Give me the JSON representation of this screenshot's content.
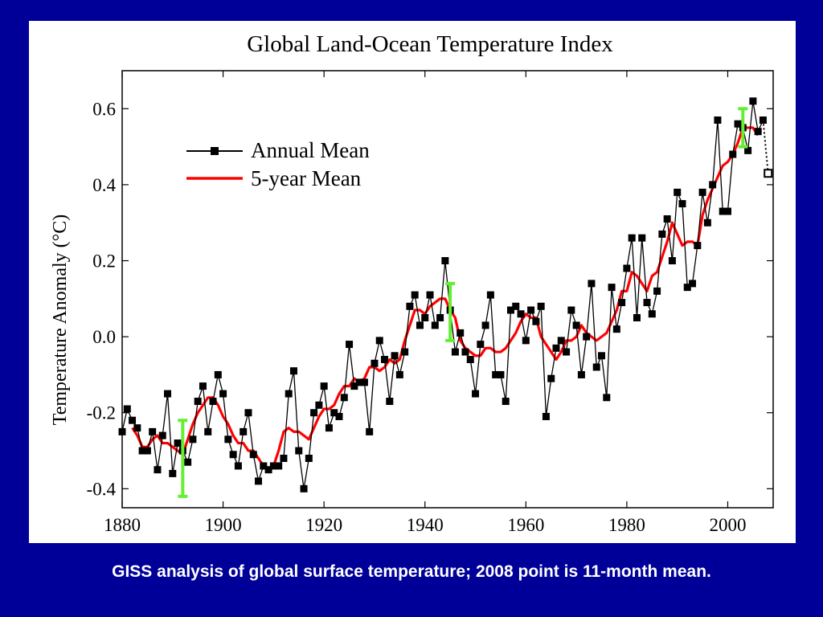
{
  "chart_data": {
    "type": "line",
    "title": "Global Land-Ocean Temperature Index",
    "xlabel": "",
    "ylabel": "Temperature Anomaly (°C)",
    "xlim": [
      1880,
      2009
    ],
    "ylim": [
      -0.45,
      0.7
    ],
    "x_ticks": [
      1880,
      1900,
      1920,
      1940,
      1960,
      1980,
      2000
    ],
    "y_ticks": [
      0.6,
      0.4,
      0.2,
      0.0,
      -0.2,
      -0.4
    ],
    "y_tick_labels": [
      "0.6",
      "0.4",
      "0.2",
      "0.0",
      "-0.2",
      "-0.4"
    ],
    "grid": false,
    "legend_position": "upper-left",
    "series": [
      {
        "name": "Annual Mean",
        "color": "#000000",
        "marker": "square",
        "x": [
          1880,
          1881,
          1882,
          1883,
          1884,
          1885,
          1886,
          1887,
          1888,
          1889,
          1890,
          1891,
          1892,
          1893,
          1894,
          1895,
          1896,
          1897,
          1898,
          1899,
          1900,
          1901,
          1902,
          1903,
          1904,
          1905,
          1906,
          1907,
          1908,
          1909,
          1910,
          1911,
          1912,
          1913,
          1914,
          1915,
          1916,
          1917,
          1918,
          1919,
          1920,
          1921,
          1922,
          1923,
          1924,
          1925,
          1926,
          1927,
          1928,
          1929,
          1930,
          1931,
          1932,
          1933,
          1934,
          1935,
          1936,
          1937,
          1938,
          1939,
          1940,
          1941,
          1942,
          1943,
          1944,
          1945,
          1946,
          1947,
          1948,
          1949,
          1950,
          1951,
          1952,
          1953,
          1954,
          1955,
          1956,
          1957,
          1958,
          1959,
          1960,
          1961,
          1962,
          1963,
          1964,
          1965,
          1966,
          1967,
          1968,
          1969,
          1970,
          1971,
          1972,
          1973,
          1974,
          1975,
          1976,
          1977,
          1978,
          1979,
          1980,
          1981,
          1982,
          1983,
          1984,
          1985,
          1986,
          1987,
          1988,
          1989,
          1990,
          1991,
          1992,
          1993,
          1994,
          1995,
          1996,
          1997,
          1998,
          1999,
          2000,
          2001,
          2002,
          2003,
          2004,
          2005,
          2006,
          2007
        ],
        "y": [
          -0.25,
          -0.19,
          -0.22,
          -0.24,
          -0.3,
          -0.3,
          -0.25,
          -0.35,
          -0.26,
          -0.15,
          -0.36,
          -0.28,
          -0.3,
          -0.33,
          -0.27,
          -0.17,
          -0.13,
          -0.25,
          -0.17,
          -0.1,
          -0.15,
          -0.27,
          -0.31,
          -0.34,
          -0.25,
          -0.2,
          -0.31,
          -0.38,
          -0.34,
          -0.35,
          -0.34,
          -0.34,
          -0.32,
          -0.15,
          -0.09,
          -0.3,
          -0.4,
          -0.32,
          -0.2,
          -0.18,
          -0.13,
          -0.24,
          -0.2,
          -0.21,
          -0.16,
          -0.02,
          -0.13,
          -0.12,
          -0.12,
          -0.25,
          -0.07,
          -0.01,
          -0.06,
          -0.17,
          -0.05,
          -0.1,
          -0.04,
          0.08,
          0.11,
          0.03,
          0.05,
          0.11,
          0.03,
          0.05,
          0.2,
          0.07,
          -0.04,
          0.01,
          -0.04,
          -0.06,
          -0.15,
          -0.02,
          0.03,
          0.11,
          -0.1,
          -0.1,
          -0.17,
          0.07,
          0.08,
          0.06,
          -0.01,
          0.07,
          0.04,
          0.08,
          -0.21,
          -0.11,
          -0.03,
          -0.01,
          -0.04,
          0.07,
          0.03,
          -0.1,
          0.0,
          0.14,
          -0.08,
          -0.05,
          -0.16,
          0.13,
          0.02,
          0.09,
          0.18,
          0.26,
          0.05,
          0.26,
          0.09,
          0.06,
          0.12,
          0.27,
          0.31,
          0.2,
          0.38,
          0.35,
          0.13,
          0.14,
          0.24,
          0.38,
          0.3,
          0.4,
          0.57,
          0.33,
          0.33,
          0.48,
          0.56,
          0.55,
          0.49,
          0.62,
          0.54,
          0.57
        ]
      },
      {
        "name": "5-year Mean",
        "color": "#ff0000",
        "x": [
          1882,
          1883,
          1884,
          1885,
          1886,
          1887,
          1888,
          1889,
          1890,
          1891,
          1892,
          1893,
          1894,
          1895,
          1896,
          1897,
          1898,
          1899,
          1900,
          1901,
          1902,
          1903,
          1904,
          1905,
          1906,
          1907,
          1908,
          1909,
          1910,
          1911,
          1912,
          1913,
          1914,
          1915,
          1916,
          1917,
          1918,
          1919,
          1920,
          1921,
          1922,
          1923,
          1924,
          1925,
          1926,
          1927,
          1928,
          1929,
          1930,
          1931,
          1932,
          1933,
          1934,
          1935,
          1936,
          1937,
          1938,
          1939,
          1940,
          1941,
          1942,
          1943,
          1944,
          1945,
          1946,
          1947,
          1948,
          1949,
          1950,
          1951,
          1952,
          1953,
          1954,
          1955,
          1956,
          1957,
          1958,
          1959,
          1960,
          1961,
          1962,
          1963,
          1964,
          1965,
          1966,
          1967,
          1968,
          1969,
          1970,
          1971,
          1972,
          1973,
          1974,
          1975,
          1976,
          1977,
          1978,
          1979,
          1980,
          1981,
          1982,
          1983,
          1984,
          1985,
          1986,
          1987,
          1988,
          1989,
          1990,
          1991,
          1992,
          1993,
          1994,
          1995,
          1996,
          1997,
          1998,
          1999,
          2000,
          2001,
          2002,
          2003,
          2004,
          2005,
          2006
        ],
        "y": [
          -0.24,
          -0.26,
          -0.29,
          -0.29,
          -0.27,
          -0.26,
          -0.28,
          -0.28,
          -0.29,
          -0.3,
          -0.31,
          -0.27,
          -0.23,
          -0.2,
          -0.18,
          -0.16,
          -0.16,
          -0.18,
          -0.21,
          -0.23,
          -0.26,
          -0.28,
          -0.28,
          -0.3,
          -0.3,
          -0.32,
          -0.34,
          -0.35,
          -0.34,
          -0.3,
          -0.25,
          -0.24,
          -0.25,
          -0.25,
          -0.26,
          -0.27,
          -0.24,
          -0.21,
          -0.19,
          -0.19,
          -0.18,
          -0.15,
          -0.13,
          -0.13,
          -0.11,
          -0.12,
          -0.11,
          -0.08,
          -0.08,
          -0.09,
          -0.08,
          -0.06,
          -0.07,
          -0.06,
          -0.01,
          0.03,
          0.07,
          0.07,
          0.06,
          0.08,
          0.09,
          0.1,
          0.1,
          0.07,
          0.05,
          -0.01,
          -0.03,
          -0.04,
          -0.05,
          -0.05,
          -0.03,
          -0.03,
          -0.04,
          -0.04,
          -0.03,
          -0.01,
          0.01,
          0.04,
          0.06,
          0.05,
          0.05,
          0.0,
          -0.02,
          -0.04,
          -0.06,
          -0.04,
          -0.01,
          -0.01,
          0.0,
          0.03,
          0.01,
          0.0,
          -0.01,
          0.0,
          0.01,
          0.04,
          0.07,
          0.12,
          0.12,
          0.17,
          0.16,
          0.14,
          0.12,
          0.16,
          0.17,
          0.21,
          0.25,
          0.3,
          0.27,
          0.24,
          0.25,
          0.25,
          0.24,
          0.32,
          0.36,
          0.39,
          0.42,
          0.45,
          0.46,
          0.48,
          0.51,
          0.55,
          0.55,
          0.55,
          0.53
        ]
      }
    ],
    "partial_point": {
      "x": 2008,
      "y": 0.43
    },
    "error_bars": [
      {
        "x": 1892,
        "low": -0.42,
        "high": -0.22,
        "color": "#66ee33"
      },
      {
        "x": 1945,
        "low": -0.01,
        "high": 0.14,
        "color": "#66ee33"
      },
      {
        "x": 2003,
        "low": 0.5,
        "high": 0.6,
        "color": "#66ee33"
      }
    ]
  },
  "caption": "GISS analysis of global surface temperature; 2008 point is 11-month mean."
}
